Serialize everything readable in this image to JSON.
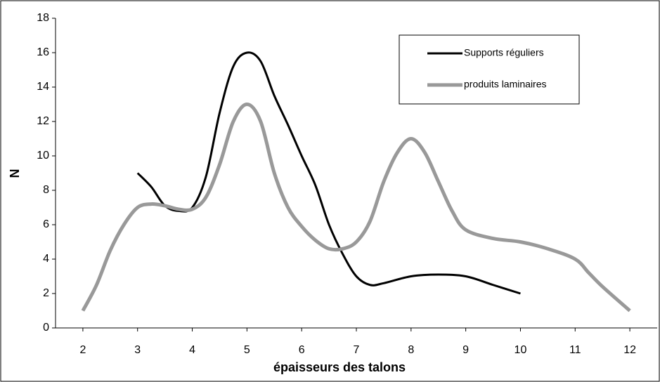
{
  "chart_data": {
    "type": "line",
    "xlabel": "épaisseurs des talons",
    "ylabel": "N",
    "xlim": [
      1.5,
      12.5
    ],
    "xticks": [
      2,
      3,
      4,
      5,
      6,
      7,
      8,
      9,
      10,
      11,
      12
    ],
    "ylim": [
      0,
      18
    ],
    "yticks": [
      0,
      2,
      4,
      6,
      8,
      10,
      12,
      14,
      16,
      18
    ],
    "legend": "upper right",
    "series": [
      {
        "name": "Supports réguliers",
        "color": "#000000",
        "x": [
          3,
          3.25,
          3.5,
          3.75,
          4,
          4.25,
          4.5,
          4.75,
          5,
          5.25,
          5.5,
          5.75,
          6,
          6.25,
          6.5,
          6.75,
          7,
          7.25,
          7.5,
          8,
          8.5,
          9,
          9.5,
          10
        ],
        "values": [
          9,
          8.2,
          7.1,
          6.8,
          7.0,
          8.8,
          12.5,
          15.2,
          16,
          15.5,
          13.5,
          11.8,
          10,
          8.3,
          6.0,
          4.3,
          3.0,
          2.5,
          2.6,
          3.0,
          3.1,
          3.0,
          2.5,
          2.0
        ]
      },
      {
        "name": "produits laminaires",
        "color": "#999999",
        "x": [
          2,
          2.25,
          2.5,
          2.75,
          3,
          3.25,
          3.5,
          3.75,
          4,
          4.25,
          4.5,
          4.75,
          5,
          5.25,
          5.5,
          5.75,
          6,
          6.25,
          6.5,
          6.75,
          7,
          7.25,
          7.5,
          7.75,
          8,
          8.25,
          8.5,
          8.75,
          9,
          9.5,
          10,
          10.5,
          11,
          11.25,
          11.5,
          12
        ],
        "values": [
          1,
          2.5,
          4.5,
          6.0,
          7.0,
          7.2,
          7.1,
          6.9,
          6.9,
          7.6,
          9.5,
          12,
          13,
          12,
          9,
          7,
          5.9,
          5.1,
          4.6,
          4.6,
          5.0,
          6.2,
          8.5,
          10.2,
          11,
          10.2,
          8.5,
          6.8,
          5.7,
          5.2,
          5.0,
          4.6,
          4.0,
          3.2,
          2.4,
          1.0
        ]
      }
    ]
  }
}
